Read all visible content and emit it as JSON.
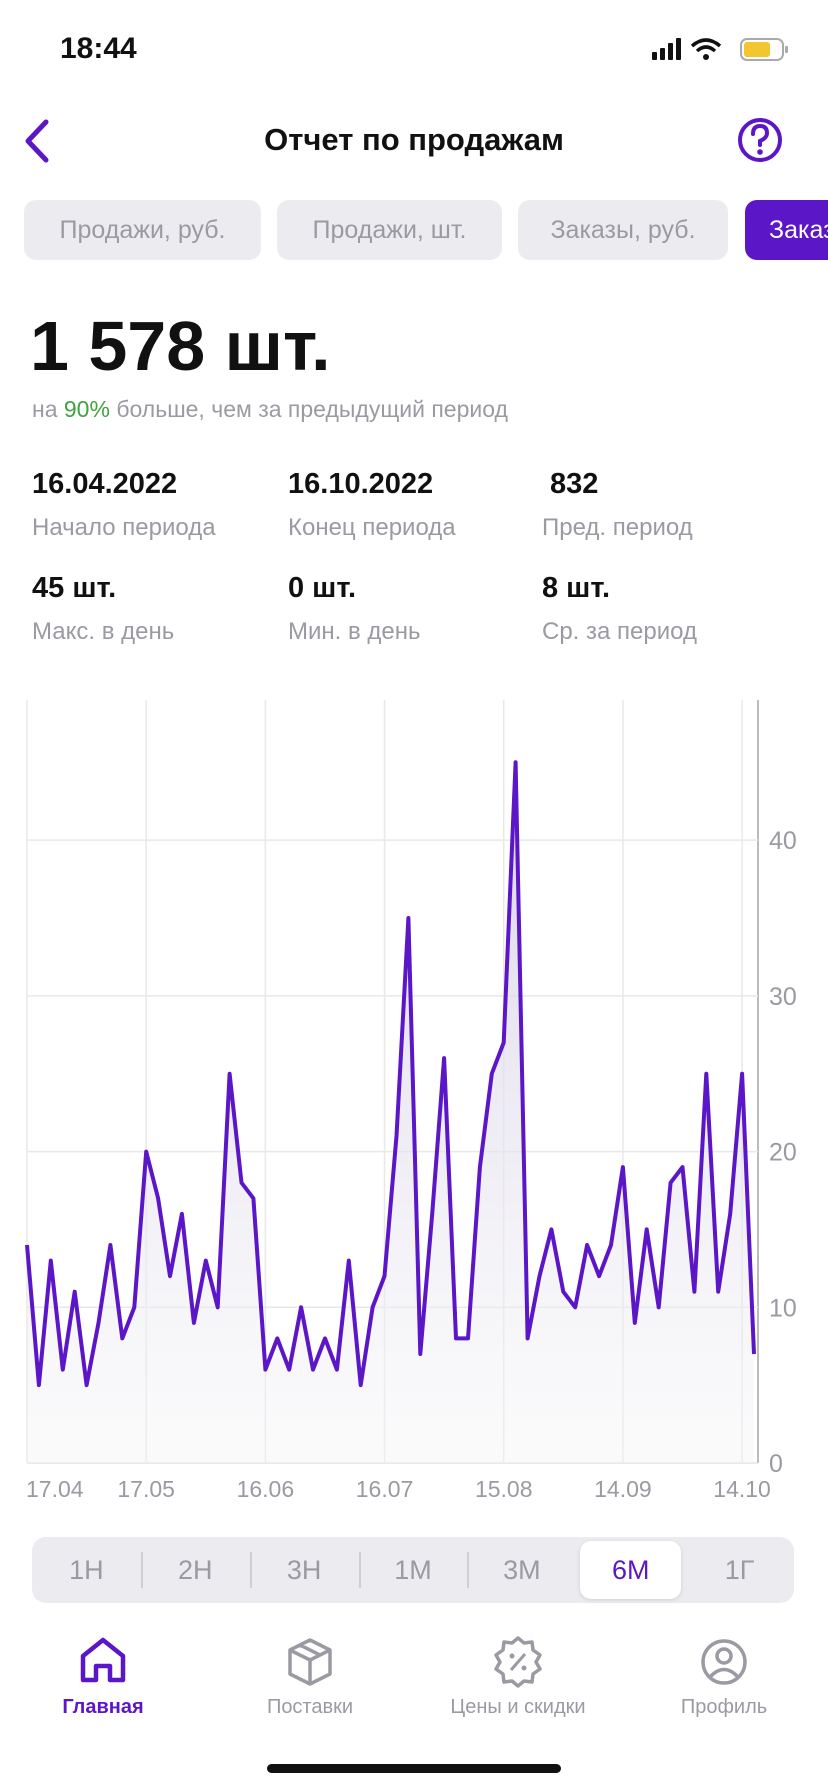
{
  "status": {
    "time": "18:44"
  },
  "header": {
    "title": "Отчет по продажам"
  },
  "tabs": {
    "items": [
      "Продажи, руб.",
      "Продажи, шт.",
      "Заказы, руб.",
      "Заказы, шт."
    ],
    "active": 3
  },
  "summary": {
    "value": "1 578 шт.",
    "note_prefix": "на",
    "note_highlight": "90%",
    "note_suffix": "больше, чем за предыдущий период"
  },
  "stats": [
    {
      "value": "16.04.2022",
      "label": "Начало периода"
    },
    {
      "value": "16.10.2022",
      "label": "Конец периода"
    },
    {
      "value": "832",
      "label": "Пред. период"
    },
    {
      "value": "45 шт.",
      "label": "Макс. в день"
    },
    {
      "value": "0 шт.",
      "label": "Мин. в день"
    },
    {
      "value": "8 шт.",
      "label": "Ср. за период"
    }
  ],
  "chart_data": {
    "type": "line",
    "color": "#5b16c8",
    "grid": true,
    "categories": [
      "17.04",
      null,
      null,
      null,
      null,
      null,
      null,
      null,
      null,
      null,
      "17.05",
      null,
      null,
      null,
      null,
      null,
      null,
      null,
      null,
      null,
      "16.06",
      null,
      null,
      null,
      null,
      null,
      null,
      null,
      null,
      null,
      "16.07",
      null,
      null,
      null,
      null,
      null,
      null,
      null,
      null,
      null,
      "15.08",
      null,
      null,
      null,
      null,
      null,
      null,
      null,
      null,
      null,
      "14.09",
      null,
      null,
      null,
      null,
      null,
      null,
      null,
      null,
      null,
      "14.10",
      null
    ],
    "values": [
      14,
      5,
      13,
      6,
      11,
      5,
      9,
      14,
      8,
      10,
      20,
      17,
      12,
      16,
      9,
      13,
      10,
      25,
      18,
      17,
      6,
      8,
      6,
      10,
      6,
      8,
      6,
      13,
      5,
      10,
      12,
      21,
      35,
      7,
      16,
      26,
      8,
      8,
      19,
      25,
      27,
      45,
      8,
      12,
      15,
      11,
      10,
      14,
      12,
      14,
      19,
      9,
      15,
      10,
      18,
      19,
      11,
      25,
      11,
      16,
      25,
      7
    ],
    "ylim": [
      0,
      49
    ],
    "yticks": [
      0,
      10,
      20,
      30,
      40
    ]
  },
  "periods": {
    "items": [
      "1Н",
      "2Н",
      "3Н",
      "1М",
      "3М",
      "6М",
      "1Г"
    ],
    "active": 5
  },
  "nav": {
    "items": [
      "Главная",
      "Поставки",
      "Цены и скидки",
      "Профиль"
    ],
    "active": 0
  }
}
